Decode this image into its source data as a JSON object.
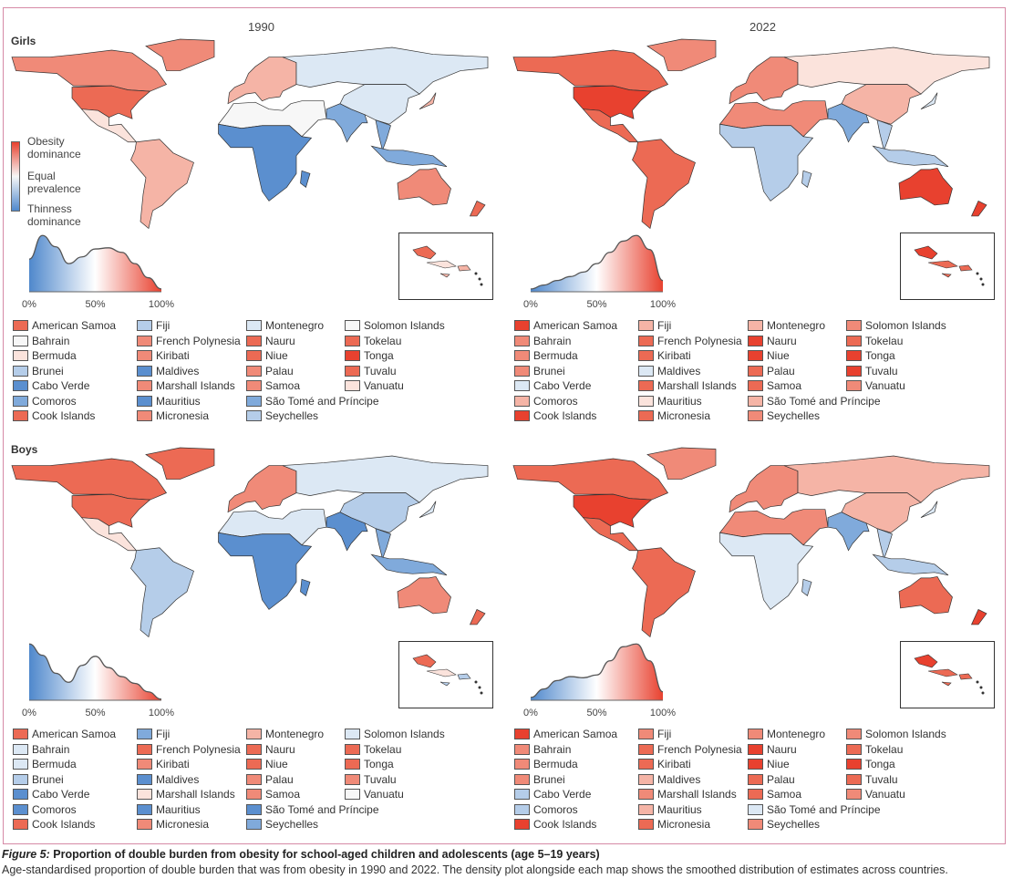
{
  "columns": {
    "left": "1990",
    "right": "2022"
  },
  "rows": {
    "top": "Girls",
    "bottom": "Boys"
  },
  "colorbar": {
    "top": "Obesity dominance",
    "middle": "Equal prevalence",
    "bottom": "Thinness dominance",
    "colors": [
      "#e8412f",
      "#f7f7f7",
      "#4f88cc"
    ]
  },
  "density_ticks": [
    "0%",
    "50%",
    "100%"
  ],
  "palette": {
    "R5": "#e8412f",
    "R4": "#ec6a54",
    "R3": "#f08a78",
    "R2": "#f5b4a6",
    "R1": "#fbe3dc",
    "W": "#f7f7f7",
    "B1": "#dce8f4",
    "B2": "#b5cde9",
    "B3": "#80aadb",
    "B4": "#5b8fcf"
  },
  "small_countries": [
    "American Samoa",
    "Bahrain",
    "Bermuda",
    "Brunei",
    "Cabo Verde",
    "Comoros",
    "Cook Islands",
    "Fiji",
    "French Polynesia",
    "Kiribati",
    "Maldives",
    "Marshall Islands",
    "Mauritius",
    "Micronesia",
    "Montenegro",
    "Nauru",
    "Niue",
    "Palau",
    "Samoa",
    "São Tomé and Príncipe",
    "Seychelles",
    "Solomon Islands",
    "Tokelau",
    "Tonga",
    "Tuvalu",
    "Vanuatu"
  ],
  "panels": [
    {
      "sex": "Girls",
      "year": "1990",
      "legend_colors": [
        "R4",
        "W",
        "R1",
        "B2",
        "B4",
        "B3",
        "R4",
        "B2",
        "R3",
        "R3",
        "B4",
        "R3",
        "B4",
        "R3",
        "B1",
        "R4",
        "R4",
        "R3",
        "R3",
        "B3",
        "B2",
        "W",
        "R4",
        "R5",
        "R4",
        "R1"
      ],
      "regions": {
        "canada": "R3",
        "usa": "R4",
        "greenland": "R3",
        "mexico": "R1",
        "south_america": "R2",
        "europe": "R2",
        "russia": "B1",
        "mena": "W",
        "africa": "B4",
        "madagascar": "B4",
        "south_asia": "B3",
        "china": "B1",
        "se_asia": "B3",
        "indonesia": "B3",
        "japan": "R2",
        "australia": "R3",
        "nz": "R4"
      },
      "density": [
        0.58,
        1.0,
        0.8,
        0.5,
        0.62,
        0.76,
        0.78,
        0.7,
        0.5,
        0.25,
        0.05
      ]
    },
    {
      "sex": "Girls",
      "year": "2022",
      "legend_colors": [
        "R5",
        "R3",
        "R3",
        "R3",
        "B1",
        "R2",
        "R5",
        "R2",
        "R4",
        "R4",
        "B1",
        "R4",
        "R1",
        "R4",
        "R2",
        "R5",
        "R5",
        "R4",
        "R4",
        "R2",
        "R3",
        "R3",
        "R4",
        "R5",
        "R5",
        "R3"
      ],
      "regions": {
        "canada": "R4",
        "usa": "R5",
        "greenland": "R3",
        "mexico": "R4",
        "south_america": "R4",
        "europe": "R3",
        "russia": "R1",
        "mena": "R3",
        "africa": "B2",
        "madagascar": "B2",
        "south_asia": "B3",
        "china": "R2",
        "se_asia": "B2",
        "indonesia": "B2",
        "japan": "B1",
        "australia": "R5",
        "nz": "R5"
      },
      "density": [
        0.05,
        0.12,
        0.2,
        0.27,
        0.35,
        0.5,
        0.7,
        0.9,
        1.0,
        0.75,
        0.2
      ]
    },
    {
      "sex": "Boys",
      "year": "1990",
      "legend_colors": [
        "R4",
        "B1",
        "B1",
        "B2",
        "B4",
        "B4",
        "R4",
        "B3",
        "R4",
        "R3",
        "B4",
        "R1",
        "B4",
        "R3",
        "R2",
        "R4",
        "R4",
        "R3",
        "R3",
        "B4",
        "B3",
        "B1",
        "R4",
        "R4",
        "R3",
        "W"
      ],
      "regions": {
        "canada": "R4",
        "usa": "R4",
        "greenland": "R4",
        "mexico": "R1",
        "south_america": "B2",
        "europe": "R3",
        "russia": "B1",
        "mena": "B1",
        "africa": "B4",
        "madagascar": "B4",
        "south_asia": "B4",
        "china": "B2",
        "se_asia": "B3",
        "indonesia": "B3",
        "japan": "B1",
        "australia": "R3",
        "nz": "R4"
      },
      "density": [
        1.0,
        0.8,
        0.48,
        0.32,
        0.62,
        0.78,
        0.58,
        0.42,
        0.3,
        0.15,
        0.02
      ]
    },
    {
      "sex": "Boys",
      "year": "2022",
      "legend_colors": [
        "R5",
        "R3",
        "R3",
        "R3",
        "B2",
        "B2",
        "R5",
        "R3",
        "R4",
        "R4",
        "R2",
        "R3",
        "R2",
        "R4",
        "R3",
        "R5",
        "R5",
        "R4",
        "R4",
        "B1",
        "R3",
        "R3",
        "R4",
        "R5",
        "R4",
        "R3"
      ],
      "regions": {
        "canada": "R4",
        "usa": "R5",
        "greenland": "R3",
        "mexico": "R4",
        "south_america": "R4",
        "europe": "R3",
        "russia": "R2",
        "mena": "R3",
        "africa": "B1",
        "madagascar": "B2",
        "south_asia": "B3",
        "china": "R2",
        "se_asia": "B2",
        "indonesia": "B2",
        "japan": "B1",
        "australia": "R4",
        "nz": "R5"
      },
      "density": [
        0.05,
        0.2,
        0.35,
        0.42,
        0.4,
        0.45,
        0.7,
        0.95,
        1.0,
        0.7,
        0.15
      ]
    }
  ],
  "caption": {
    "label": "Figure 5:",
    "title": " Proportion of double burden from obesity for school-aged children and adolescents (age 5–19 years)",
    "text": "Age-standardised proportion of double burden that was from obesity in 1990 and 2022. The density plot alongside each map shows the smoothed distribution of estimates across countries."
  }
}
